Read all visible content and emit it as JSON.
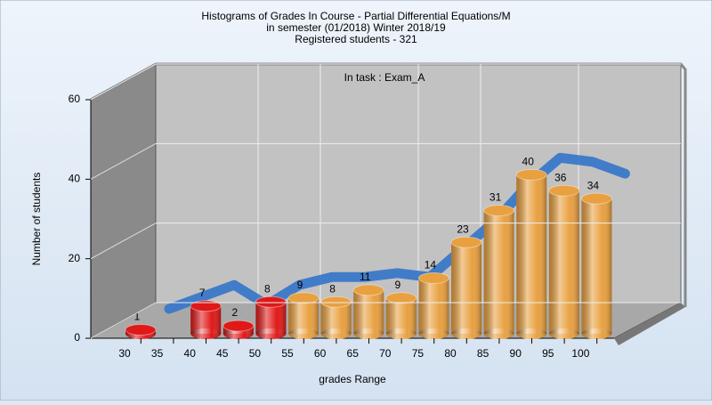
{
  "chart_data": {
    "type": "bar3d",
    "title": "Histograms of Grades  In Course - Partial Differential Equations/M",
    "subtitle": "in semester  (01/2018) Winter 2018/19",
    "subtitle2": "Registered students - 321",
    "annotation": "In task : Exam_A",
    "y_label": "Number of students",
    "x_label": "grades Range",
    "categories": [
      "30",
      "35",
      "40",
      "45",
      "50",
      "55",
      "60",
      "65",
      "70",
      "75",
      "80",
      "85",
      "90",
      "95",
      "100"
    ],
    "values": [
      1,
      null,
      7,
      2,
      8,
      9,
      8,
      11,
      9,
      14,
      23,
      31,
      40,
      36,
      34
    ],
    "colors": [
      "#e01818",
      "#e01818",
      "#e01818",
      "#e01818",
      "#e01818",
      "#e8a040",
      "#e8a040",
      "#e8a040",
      "#e8a040",
      "#e8a040",
      "#e8a040",
      "#e8a040",
      "#e8a040",
      "#e8a040",
      "#e8a040"
    ],
    "back_series": {
      "color": "#3a78c8",
      "values": [
        0,
        3,
        6,
        1,
        6,
        8,
        8,
        9,
        8,
        15,
        22,
        31,
        38,
        37,
        34
      ]
    },
    "ylim": [
      0,
      60
    ],
    "yticks": [
      0,
      20,
      40,
      60
    ],
    "grid": true
  }
}
